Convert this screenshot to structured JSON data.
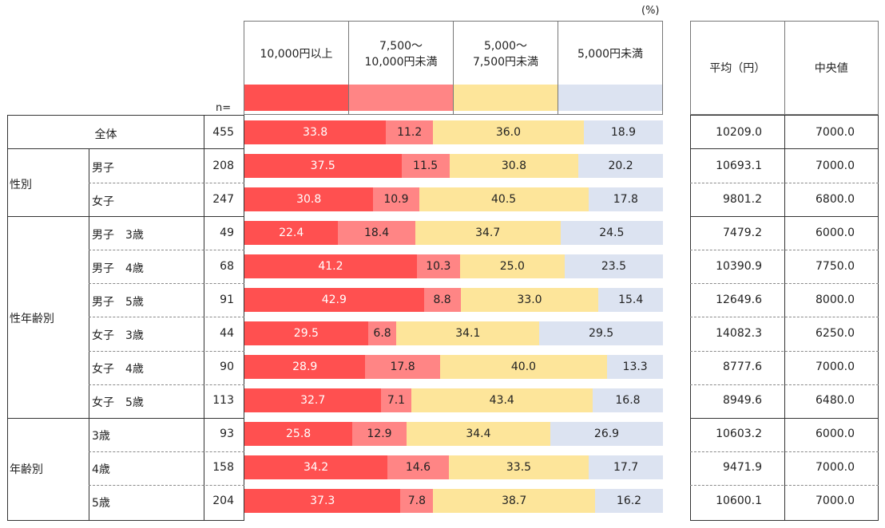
{
  "unit_label": "(%)",
  "n_label": "n=",
  "colors": {
    "c1": "#ff5050",
    "c2": "#ff8585",
    "c3": "#fde59a",
    "c4": "#dce3f1"
  },
  "stats_headers": [
    "平均（円）",
    "中央値"
  ],
  "chart_data": {
    "type": "bar",
    "stacked": true,
    "orientation": "horizontal",
    "unit": "(%)",
    "series": [
      {
        "name": "10,000円以上",
        "color": "#ff5050"
      },
      {
        "name": "7,500～\n10,000円未満",
        "color": "#ff8585"
      },
      {
        "name": "5,000～\n7,500円未満",
        "color": "#fde59a"
      },
      {
        "name": "5,000円未満",
        "color": "#dce3f1"
      }
    ],
    "rows": [
      {
        "group": "",
        "label": "全体",
        "n": "455",
        "values": [
          33.8,
          11.2,
          36.0,
          18.9
        ],
        "labels": [
          "33.8",
          "11.2",
          "36.0",
          "18.9"
        ],
        "mean": "10209.0",
        "median": "7000.0"
      },
      {
        "group": "性別",
        "label": "男子",
        "n": "208",
        "values": [
          37.5,
          11.5,
          30.8,
          20.2
        ],
        "labels": [
          "37.5",
          "11.5",
          "30.8",
          "20.2"
        ],
        "mean": "10693.1",
        "median": "7000.0"
      },
      {
        "group": "性別",
        "label": "女子",
        "n": "247",
        "values": [
          30.8,
          10.9,
          40.5,
          17.8
        ],
        "labels": [
          "30.8",
          "10.9",
          "40.5",
          "17.8"
        ],
        "mean": "9801.2",
        "median": "6800.0"
      },
      {
        "group": "性年齢別",
        "label": "男子　3歳",
        "n": "49",
        "values": [
          22.4,
          18.4,
          34.7,
          24.5
        ],
        "labels": [
          "22.4",
          "18.4",
          "34.7",
          "24.5"
        ],
        "mean": "7479.2",
        "median": "6000.0"
      },
      {
        "group": "性年齢別",
        "label": "男子　4歳",
        "n": "68",
        "values": [
          41.2,
          10.3,
          25.0,
          23.5
        ],
        "labels": [
          "41.2",
          "10.3",
          "25.0",
          "23.5"
        ],
        "mean": "10390.9",
        "median": "7750.0"
      },
      {
        "group": "性年齢別",
        "label": "男子　5歳",
        "n": "91",
        "values": [
          42.9,
          8.8,
          33.0,
          15.4
        ],
        "labels": [
          "42.9",
          "8.8",
          "33.0",
          "15.4"
        ],
        "mean": "12649.6",
        "median": "8000.0"
      },
      {
        "group": "性年齢別",
        "label": "女子　3歳",
        "n": "44",
        "values": [
          29.5,
          6.8,
          34.1,
          29.5
        ],
        "labels": [
          "29.5",
          "6.8",
          "34.1",
          "29.5"
        ],
        "mean": "14082.3",
        "median": "6250.0"
      },
      {
        "group": "性年齢別",
        "label": "女子　4歳",
        "n": "90",
        "values": [
          28.9,
          17.8,
          40.0,
          13.3
        ],
        "labels": [
          "28.9",
          "17.8",
          "40.0",
          "13.3"
        ],
        "mean": "8777.6",
        "median": "7000.0"
      },
      {
        "group": "性年齢別",
        "label": "女子　5歳",
        "n": "113",
        "values": [
          32.7,
          7.1,
          43.4,
          16.8
        ],
        "labels": [
          "32.7",
          "7.1",
          "43.4",
          "16.8"
        ],
        "mean": "8949.6",
        "median": "6480.0"
      },
      {
        "group": "年齢別",
        "label": "3歳",
        "n": "93",
        "values": [
          25.8,
          12.9,
          34.4,
          26.9
        ],
        "labels": [
          "25.8",
          "12.9",
          "34.4",
          "26.9"
        ],
        "mean": "10603.2",
        "median": "6000.0"
      },
      {
        "group": "年齢別",
        "label": "4歳",
        "n": "158",
        "values": [
          34.2,
          14.6,
          33.5,
          17.7
        ],
        "labels": [
          "34.2",
          "14.6",
          "33.5",
          "17.7"
        ],
        "mean": "9471.9",
        "median": "7000.0"
      },
      {
        "group": "年齢別",
        "label": "5歳",
        "n": "204",
        "values": [
          37.3,
          7.8,
          38.7,
          16.2
        ],
        "labels": [
          "37.3",
          "7.8",
          "38.7",
          "16.2"
        ],
        "mean": "10600.1",
        "median": "7000.0"
      }
    ]
  }
}
